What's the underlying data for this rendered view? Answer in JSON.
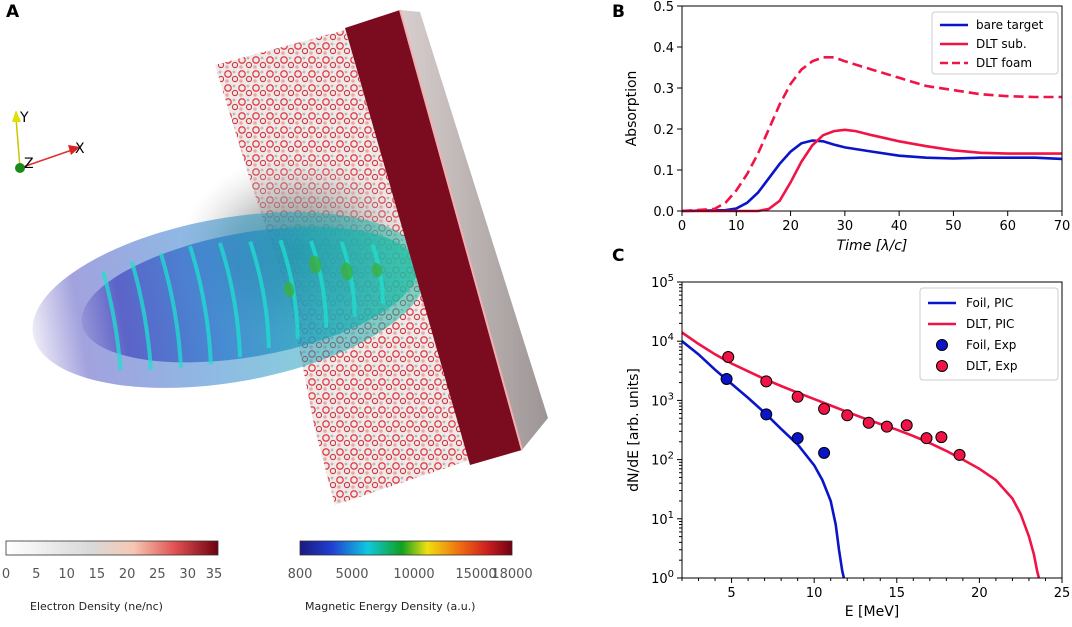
{
  "panel_labels": {
    "a": "A",
    "b": "B",
    "c": "C"
  },
  "axes_triad": {
    "x": "X",
    "y": "Y",
    "z": "Z"
  },
  "colorbars": {
    "electron": {
      "title": "Electron Density (ne/nc)",
      "ticks": [
        "0",
        "5",
        "10",
        "15",
        "20",
        "25",
        "30",
        "35"
      ]
    },
    "magnetic": {
      "title": "Magnetic Energy Density (a.u.)",
      "ticks": [
        "800",
        "5000",
        "10000",
        "15000",
        "18000"
      ]
    }
  },
  "colors": {
    "blue": "#0a14c8",
    "red": "#f01446"
  },
  "chart_data": [
    {
      "id": "B",
      "type": "line",
      "xlabel": "Time [λ/c]",
      "ylabel": "Absorption",
      "xlim": [
        0,
        70
      ],
      "ylim": [
        0,
        0.5
      ],
      "xticks": [
        0,
        10,
        20,
        30,
        40,
        50,
        60,
        70
      ],
      "yticks": [
        0.0,
        0.1,
        0.2,
        0.3,
        0.4,
        0.5
      ],
      "ytick_labels": [
        "0.0",
        "0.1",
        "0.2",
        "0.3",
        "0.4",
        "0.5"
      ],
      "legend_position": "top-right",
      "series": [
        {
          "name": "bare target",
          "color": "#0a14c8",
          "dash": "solid",
          "x": [
            0,
            8,
            10,
            12,
            14,
            16,
            18,
            20,
            22,
            24,
            26,
            28,
            30,
            35,
            40,
            45,
            50,
            55,
            60,
            65,
            70
          ],
          "y": [
            0,
            0.002,
            0.006,
            0.02,
            0.045,
            0.08,
            0.115,
            0.145,
            0.165,
            0.172,
            0.17,
            0.162,
            0.155,
            0.145,
            0.135,
            0.13,
            0.128,
            0.13,
            0.13,
            0.13,
            0.127
          ]
        },
        {
          "name": "DLT sub.",
          "color": "#f01446",
          "dash": "solid",
          "x": [
            0,
            14,
            16,
            18,
            20,
            22,
            24,
            26,
            28,
            30,
            32,
            35,
            40,
            45,
            50,
            55,
            60,
            65,
            70
          ],
          "y": [
            0,
            0.0,
            0.005,
            0.025,
            0.07,
            0.12,
            0.16,
            0.185,
            0.195,
            0.198,
            0.195,
            0.185,
            0.17,
            0.158,
            0.148,
            0.142,
            0.14,
            0.14,
            0.14
          ]
        },
        {
          "name": "DLT foam",
          "color": "#f01446",
          "dash": "dashed",
          "x": [
            0,
            6,
            8,
            10,
            12,
            14,
            16,
            18,
            20,
            22,
            24,
            26,
            28,
            30,
            35,
            40,
            45,
            50,
            55,
            60,
            65,
            70
          ],
          "y": [
            0,
            0.005,
            0.02,
            0.05,
            0.09,
            0.14,
            0.2,
            0.26,
            0.31,
            0.345,
            0.365,
            0.375,
            0.375,
            0.365,
            0.345,
            0.325,
            0.305,
            0.295,
            0.285,
            0.28,
            0.278,
            0.278
          ]
        }
      ]
    },
    {
      "id": "C",
      "type": "line",
      "xlabel": "E [MeV]",
      "ylabel": "dN/dE [arb. units]",
      "yscale": "log",
      "xlim": [
        2,
        25
      ],
      "ylim": [
        1,
        100000
      ],
      "xticks": [
        5,
        10,
        15,
        20,
        25
      ],
      "ytick_exponents": [
        0,
        1,
        2,
        3,
        4,
        5
      ],
      "legend_position": "top-right",
      "series": [
        {
          "name": "Foil, PIC",
          "color": "#0a14c8",
          "kind": "line",
          "x": [
            2,
            3,
            4,
            5,
            6,
            7,
            8,
            9,
            10,
            10.5,
            11,
            11.3,
            11.5,
            11.7,
            11.8
          ],
          "y": [
            10000,
            6000,
            3300,
            1900,
            1100,
            620,
            330,
            180,
            80,
            45,
            20,
            8,
            3,
            1.3,
            1
          ]
        },
        {
          "name": "DLT, PIC",
          "color": "#f01446",
          "kind": "line",
          "x": [
            2,
            3,
            4,
            5,
            6,
            7,
            8,
            9,
            10,
            11,
            12,
            13,
            14,
            15,
            16,
            17,
            18,
            19,
            20,
            21,
            22,
            22.5,
            23,
            23.3,
            23.5,
            23.6
          ],
          "y": [
            14000,
            9000,
            6000,
            4200,
            3100,
            2300,
            1750,
            1350,
            1050,
            820,
            640,
            500,
            400,
            320,
            250,
            190,
            140,
            100,
            70,
            45,
            22,
            12,
            5,
            2.5,
            1.3,
            1
          ]
        },
        {
          "name": "Foil, Exp",
          "color": "#0a14c8",
          "kind": "scatter",
          "x": [
            4.7,
            7.1,
            9.0,
            10.6
          ],
          "y": [
            2300,
            580,
            230,
            130
          ]
        },
        {
          "name": "DLT, Exp",
          "color": "#f01446",
          "kind": "scatter",
          "x": [
            4.8,
            7.1,
            9.0,
            10.6,
            12.0,
            13.3,
            14.4,
            15.6,
            16.8,
            17.7,
            18.8
          ],
          "y": [
            5400,
            2100,
            1150,
            720,
            560,
            420,
            360,
            380,
            230,
            240,
            120
          ]
        }
      ]
    }
  ]
}
